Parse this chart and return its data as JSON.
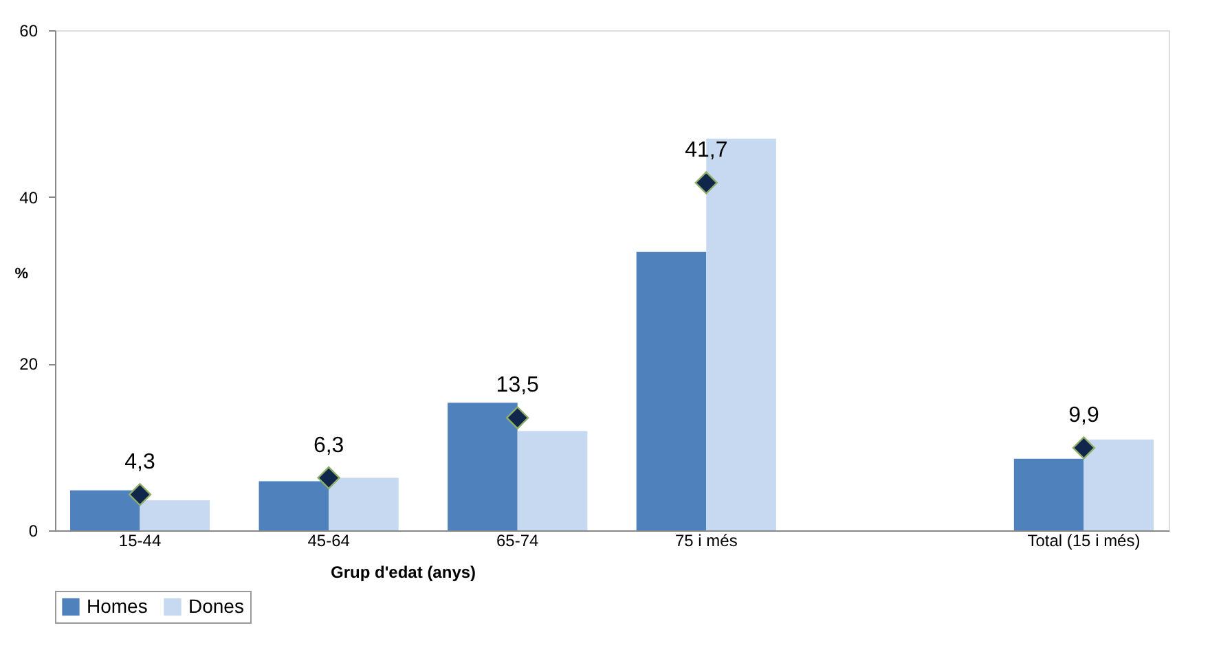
{
  "chart_data": {
    "type": "bar",
    "xlabel": "Grup d'edat (anys)",
    "ylabel": "%",
    "categories": [
      "15-44",
      "45-64",
      "65-74",
      "75 i més",
      null,
      "Total (15 i més)"
    ],
    "series": [
      {
        "name": "Homes",
        "color": "#4f81bd",
        "values": [
          4.8,
          5.9,
          15.3,
          33.4,
          null,
          8.6
        ]
      },
      {
        "name": "Dones",
        "color": "#c6d9f0",
        "values": [
          3.6,
          6.3,
          11.9,
          47.0,
          null,
          10.9
        ]
      },
      {
        "type": "scatter",
        "marker": "diamond",
        "color": "#10264a",
        "values": [
          4.3,
          6.3,
          13.5,
          41.7,
          null,
          9.9
        ],
        "value_labels": [
          "4,3",
          "6,3",
          "13,5",
          "41,7",
          null,
          "9,9"
        ]
      }
    ],
    "ylim": [
      0,
      60
    ],
    "yticks": [
      0,
      20,
      40,
      60
    ],
    "grid": false,
    "legend": "bottom"
  }
}
